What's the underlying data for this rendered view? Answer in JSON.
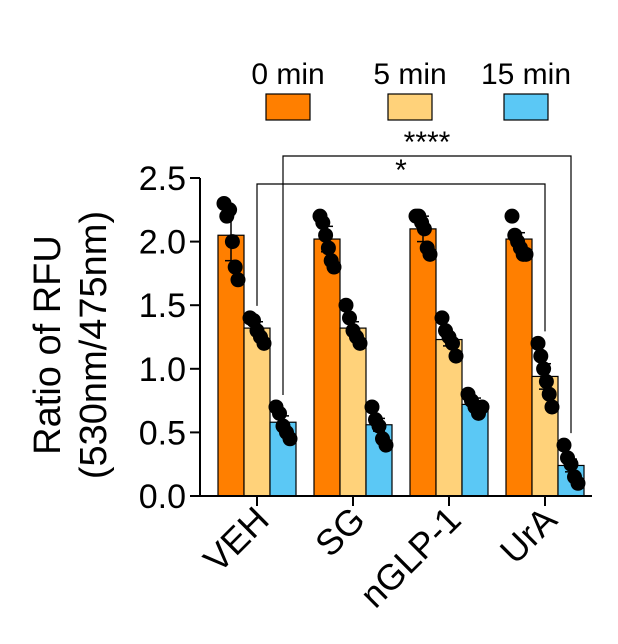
{
  "chart_data": {
    "type": "bar",
    "ylabel_line1": "Ratio of RFU",
    "ylabel_line2": "(530nm/475nm)",
    "xlabel": "",
    "ylim": [
      0,
      2.5
    ],
    "yticks": [
      "0.0",
      "0.5",
      "1.0",
      "1.5",
      "2.0",
      "2.5"
    ],
    "categories": [
      "VEH",
      "SG",
      "nGLP-1",
      "UrA"
    ],
    "series": [
      {
        "name": "0 min",
        "color": "#FF7F00",
        "values": [
          2.05,
          2.02,
          2.1,
          2.02
        ],
        "errors": [
          0.2,
          0.1,
          0.1,
          0.05
        ],
        "points": [
          [
            2.3,
            2.2,
            2.25,
            2.0,
            1.8,
            1.7
          ],
          [
            2.2,
            2.15,
            2.05,
            1.95,
            1.85,
            1.8
          ],
          [
            2.2,
            2.2,
            2.15,
            2.1,
            1.95,
            1.9
          ],
          [
            2.2,
            2.05,
            2.0,
            1.95,
            1.9,
            1.9
          ]
        ]
      },
      {
        "name": "5 min",
        "color": "#FFD27A",
        "values": [
          1.32,
          1.32,
          1.23,
          0.94
        ],
        "errors": [
          0.05,
          0.05,
          0.05,
          0.1
        ],
        "points": [
          [
            1.4,
            1.38,
            1.3,
            1.25,
            1.2
          ],
          [
            1.5,
            1.4,
            1.3,
            1.25,
            1.2
          ],
          [
            1.4,
            1.3,
            1.25,
            1.2,
            1.1
          ],
          [
            1.2,
            1.1,
            1.0,
            0.9,
            0.8,
            0.7
          ]
        ]
      },
      {
        "name": "15 min",
        "color": "#5BC8F5",
        "values": [
          0.58,
          0.56,
          0.72,
          0.24
        ],
        "errors": [
          0.05,
          0.05,
          0.05,
          0.05
        ],
        "points": [
          [
            0.7,
            0.65,
            0.55,
            0.5,
            0.45
          ],
          [
            0.7,
            0.6,
            0.55,
            0.45,
            0.4
          ],
          [
            0.8,
            0.75,
            0.7,
            0.65,
            0.7
          ],
          [
            0.4,
            0.3,
            0.25,
            0.15,
            0.1
          ]
        ]
      }
    ],
    "legend": {
      "placement": "top",
      "labels": [
        "0 min",
        "5 min",
        "15 min"
      ]
    },
    "significance": [
      {
        "label": "*",
        "from_category": "VEH",
        "from_series": "5 min",
        "to_category": "UrA",
        "to_series": "5 min"
      },
      {
        "label": "****",
        "from_category": "VEH",
        "from_series": "15 min",
        "to_category": "UrA",
        "to_series": "15 min"
      }
    ],
    "grid": false
  }
}
